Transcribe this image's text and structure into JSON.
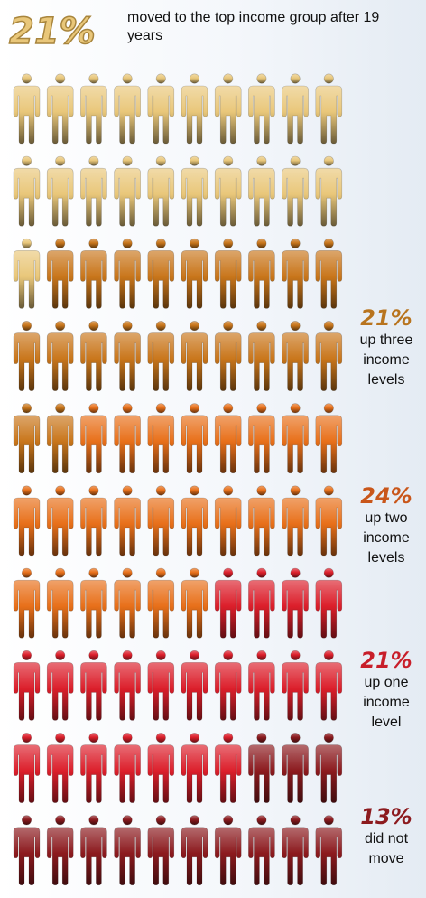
{
  "header": {
    "percent": "21%",
    "text": "moved to the top income group after 19 years"
  },
  "labels": [
    {
      "percent": "21%",
      "text": "up three\nincome\nlevels"
    },
    {
      "percent": "24%",
      "text": "up two\nincome\nlevels"
    },
    {
      "percent": "21%",
      "text": "up one\nincome\nlevel"
    },
    {
      "percent": "13%",
      "text": "did not\nmove"
    }
  ],
  "colors": {
    "top_group": "#e9c77a",
    "up_three": "#c9761b",
    "up_two": "#e8701a",
    "up_one": "#dc1f2b",
    "did_not_move": "#8c1a1e",
    "header_percent": "#e9c77a",
    "up_three_label": "#b8741e",
    "up_two_label": "#c9561a",
    "up_one_label": "#c81e2a",
    "did_not_move_label": "#8c1a1e"
  },
  "chart_data": {
    "type": "pictograph",
    "total_figures": 100,
    "figures_per_row": 10,
    "categories": [
      "moved to the top income group after 19 years",
      "up three income levels",
      "up two income levels",
      "up one income level",
      "did not move"
    ],
    "values": [
      21,
      21,
      24,
      21,
      13
    ]
  }
}
